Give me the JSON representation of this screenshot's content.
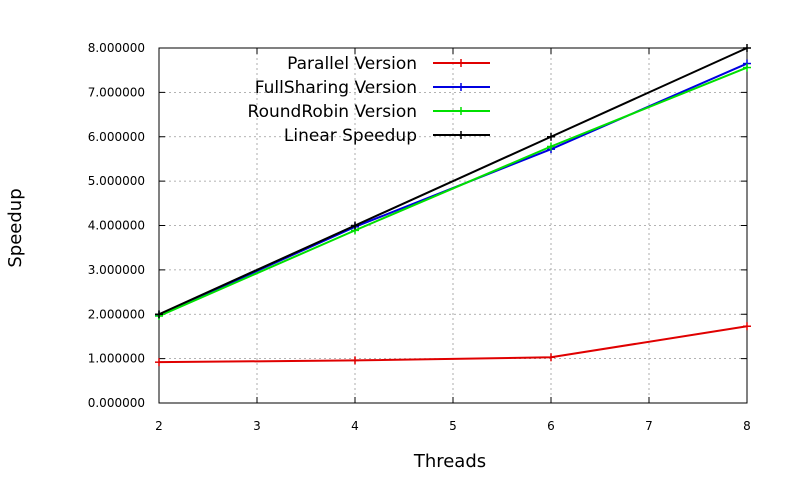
{
  "chart_data": {
    "type": "line",
    "xlabel": "Threads",
    "ylabel": "Speedup",
    "xlim": [
      2,
      8
    ],
    "ylim": [
      0,
      8
    ],
    "x_ticks": [
      "2",
      "3",
      "4",
      "5",
      "6",
      "7",
      "8"
    ],
    "y_ticks": [
      "0.000000",
      "1.000000",
      "2.000000",
      "3.000000",
      "4.000000",
      "5.000000",
      "6.000000",
      "7.000000",
      "8.000000"
    ],
    "grid": true,
    "legend_position": "top-left",
    "series": [
      {
        "name": "Parallel Version",
        "color": "#e00000",
        "x": [
          2,
          4,
          6,
          8
        ],
        "values": [
          0.92,
          0.96,
          1.03,
          1.73
        ]
      },
      {
        "name": "FullSharing Version",
        "color": "#0000e0",
        "x": [
          2,
          4,
          6,
          8
        ],
        "values": [
          1.98,
          3.97,
          5.72,
          7.65
        ]
      },
      {
        "name": "RoundRobin Version",
        "color": "#00e000",
        "x": [
          2,
          4,
          6,
          8
        ],
        "values": [
          1.96,
          3.89,
          5.78,
          7.56
        ]
      },
      {
        "name": "Linear Speedup",
        "color": "#000000",
        "x": [
          2,
          4,
          6,
          8
        ],
        "values": [
          2.0,
          4.0,
          6.0,
          8.0
        ]
      }
    ]
  }
}
